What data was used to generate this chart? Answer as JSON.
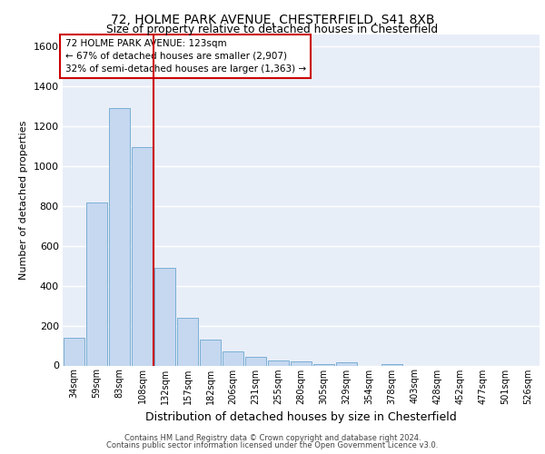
{
  "title1": "72, HOLME PARK AVENUE, CHESTERFIELD, S41 8XB",
  "title2": "Size of property relative to detached houses in Chesterfield",
  "xlabel": "Distribution of detached houses by size in Chesterfield",
  "ylabel": "Number of detached properties",
  "categories": [
    "34sqm",
    "59sqm",
    "83sqm",
    "108sqm",
    "132sqm",
    "157sqm",
    "182sqm",
    "206sqm",
    "231sqm",
    "255sqm",
    "280sqm",
    "305sqm",
    "329sqm",
    "354sqm",
    "378sqm",
    "403sqm",
    "428sqm",
    "452sqm",
    "477sqm",
    "501sqm",
    "526sqm"
  ],
  "values": [
    140,
    815,
    1290,
    1095,
    490,
    240,
    130,
    70,
    45,
    25,
    20,
    5,
    18,
    0,
    5,
    0,
    0,
    0,
    0,
    0,
    0
  ],
  "bar_color": "#c5d8f0",
  "bar_edge_color": "#7bafd4",
  "bg_color": "#e8eef8",
  "grid_color": "#ffffff",
  "vline_x": 4.0,
  "vline_color": "#cc0000",
  "annotation_text": "72 HOLME PARK AVENUE: 123sqm\n← 67% of detached houses are smaller (2,907)\n32% of semi-detached houses are larger (1,363) →",
  "annotation_box_color": "#ffffff",
  "annotation_box_edge": "#cc0000",
  "footer1": "Contains HM Land Registry data © Crown copyright and database right 2024.",
  "footer2": "Contains public sector information licensed under the Open Government Licence v3.0.",
  "ylim": [
    0,
    1660
  ],
  "yticks": [
    0,
    200,
    400,
    600,
    800,
    1000,
    1200,
    1400,
    1600
  ]
}
